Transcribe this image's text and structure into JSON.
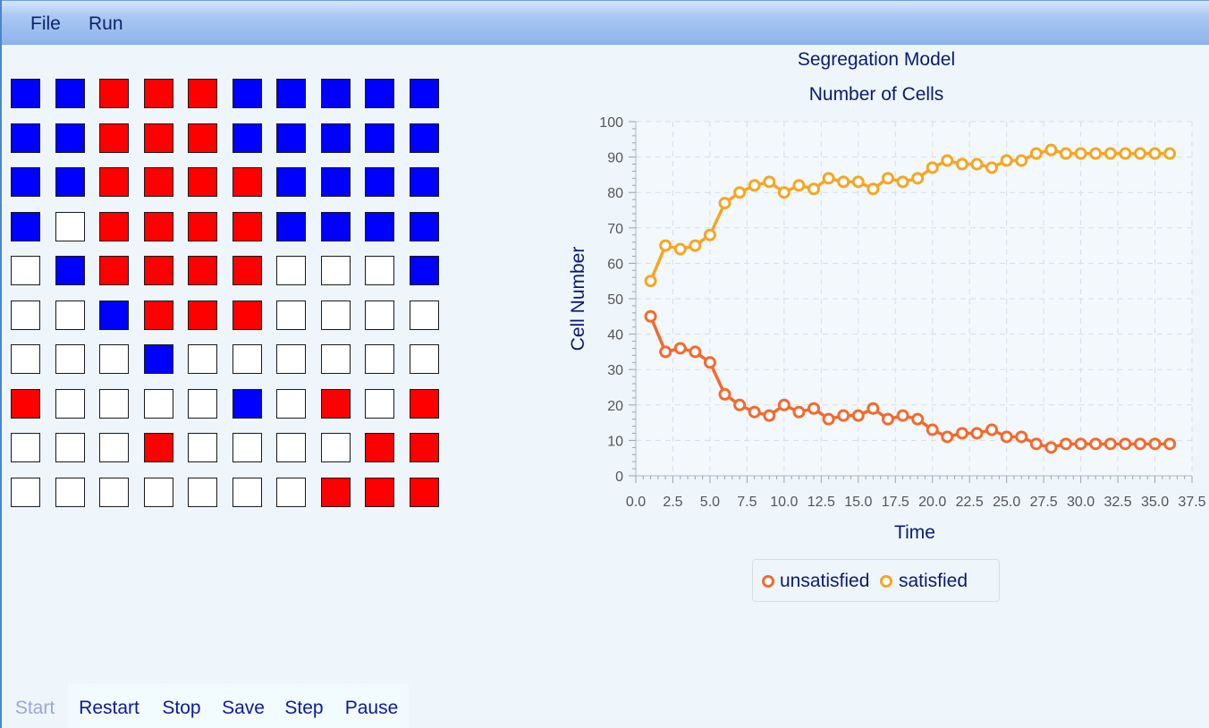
{
  "menu": {
    "file": "File",
    "run": "Run"
  },
  "grid": {
    "rows": [
      "BBRRRBBBBB",
      "BBRRRBBBBB",
      "BBRRRRBBBB",
      "BWRRRRBBBB",
      "WBRRRRWWWB",
      "WWBRRRWWWW",
      "WWWBWWWWWW",
      "RWWWWBWRWR",
      "WWWRWWWWRR",
      "WWWWWWWRRR"
    ],
    "colors": {
      "R": "#ff0000",
      "B": "#0000ff",
      "W": "#ffffff"
    }
  },
  "chart_data": {
    "type": "line",
    "title": "Segregation Model",
    "subtitle": "Number of Cells",
    "xlabel": "Time",
    "ylabel": "Cell Number",
    "xlim": [
      0,
      37.5
    ],
    "ylim": [
      0,
      100
    ],
    "xticks": [
      "0.0",
      "2.5",
      "5.0",
      "7.5",
      "10.0",
      "12.5",
      "15.0",
      "17.5",
      "20.0",
      "22.5",
      "25.0",
      "27.5",
      "30.0",
      "32.5",
      "35.0",
      "37.5"
    ],
    "yticks": [
      "0",
      "10",
      "20",
      "30",
      "40",
      "50",
      "60",
      "70",
      "80",
      "90",
      "100"
    ],
    "grid": true,
    "legend_position": "bottom",
    "x": [
      1,
      2,
      3,
      4,
      5,
      6,
      7,
      8,
      9,
      10,
      11,
      12,
      13,
      14,
      15,
      16,
      17,
      18,
      19,
      20,
      21,
      22,
      23,
      24,
      25,
      26,
      27,
      28,
      29,
      30,
      31,
      32,
      33,
      34,
      35,
      36
    ],
    "series": [
      {
        "name": "unsatisfied",
        "color": "#f26a2e",
        "values": [
          45,
          35,
          36,
          35,
          32,
          23,
          20,
          18,
          17,
          20,
          18,
          19,
          16,
          17,
          17,
          19,
          16,
          17,
          16,
          13,
          11,
          12,
          12,
          13,
          11,
          11,
          9,
          8,
          9,
          9,
          9,
          9,
          9,
          9,
          9,
          9
        ]
      },
      {
        "name": "satisfied",
        "color": "#f5a623",
        "values": [
          55,
          65,
          64,
          65,
          68,
          77,
          80,
          82,
          83,
          80,
          82,
          81,
          84,
          83,
          83,
          81,
          84,
          83,
          84,
          87,
          89,
          88,
          88,
          87,
          89,
          89,
          91,
          92,
          91,
          91,
          91,
          91,
          91,
          91,
          91,
          91
        ]
      }
    ]
  },
  "controls": {
    "start": "Start",
    "restart": "Restart",
    "stop": "Stop",
    "save": "Save",
    "step": "Step",
    "pause": "Pause"
  }
}
